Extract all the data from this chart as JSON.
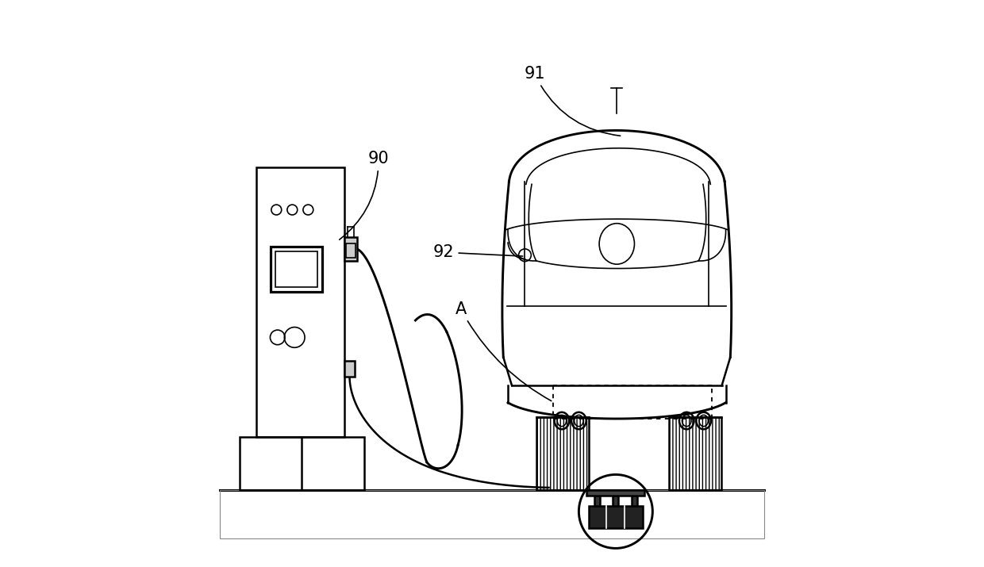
{
  "bg_color": "#ffffff",
  "line_color": "#000000",
  "label_fontsize": 15,
  "figsize": [
    12.4,
    7.15
  ],
  "dpi": 100
}
